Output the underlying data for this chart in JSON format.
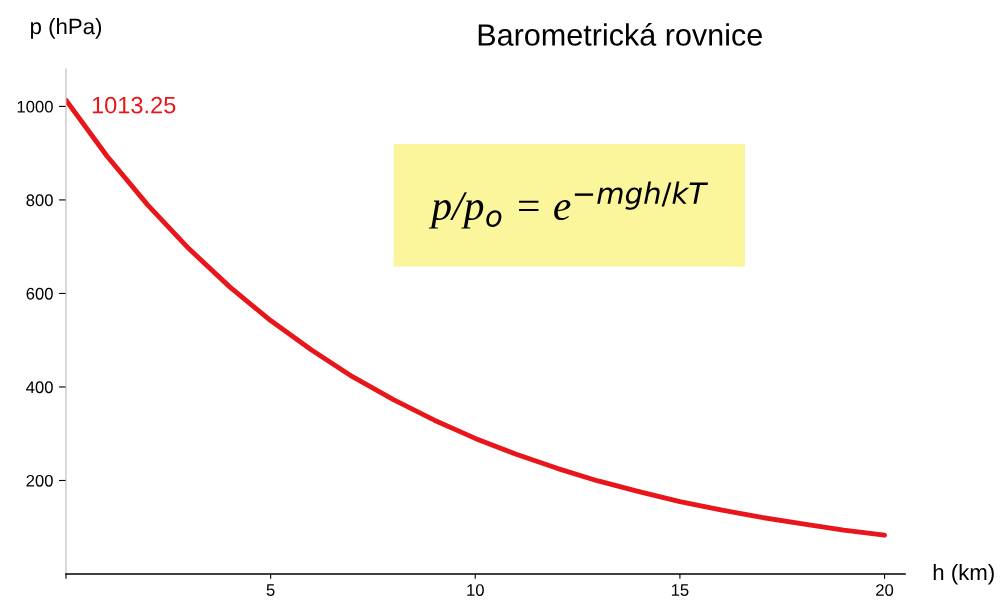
{
  "chart_data": {
    "type": "line",
    "title": "Barometrická rovnice",
    "xlabel": "h (km)",
    "ylabel": "p (hPa)",
    "x": [
      0,
      1,
      2,
      3,
      4,
      5,
      6,
      7,
      8,
      9,
      10,
      11,
      12,
      13,
      14,
      15,
      16,
      17,
      18,
      19,
      20
    ],
    "series": [
      {
        "color": "#e8161b",
        "values": [
          1013.25,
          894,
          789,
          696,
          614,
          542,
          479,
          422,
          373,
          329,
          290,
          256,
          226,
          199,
          176,
          155,
          137,
          121,
          107,
          94,
          83
        ]
      }
    ],
    "xlim": [
      0,
      20.5
    ],
    "ylim": [
      0,
      1080
    ],
    "xticks": [
      {
        "value": 0,
        "label": null
      },
      5,
      10,
      15,
      20
    ],
    "yticks": [
      200,
      400,
      600,
      800,
      1000
    ],
    "grid": false,
    "legend": false,
    "marker": "none",
    "line_style": "solid",
    "annotations": [
      {
        "text": "1013.25",
        "x": 0,
        "y": 1013.25
      },
      "p/p$_{o}$ = e$^{−mgh/kT}$"
    ]
  }
}
